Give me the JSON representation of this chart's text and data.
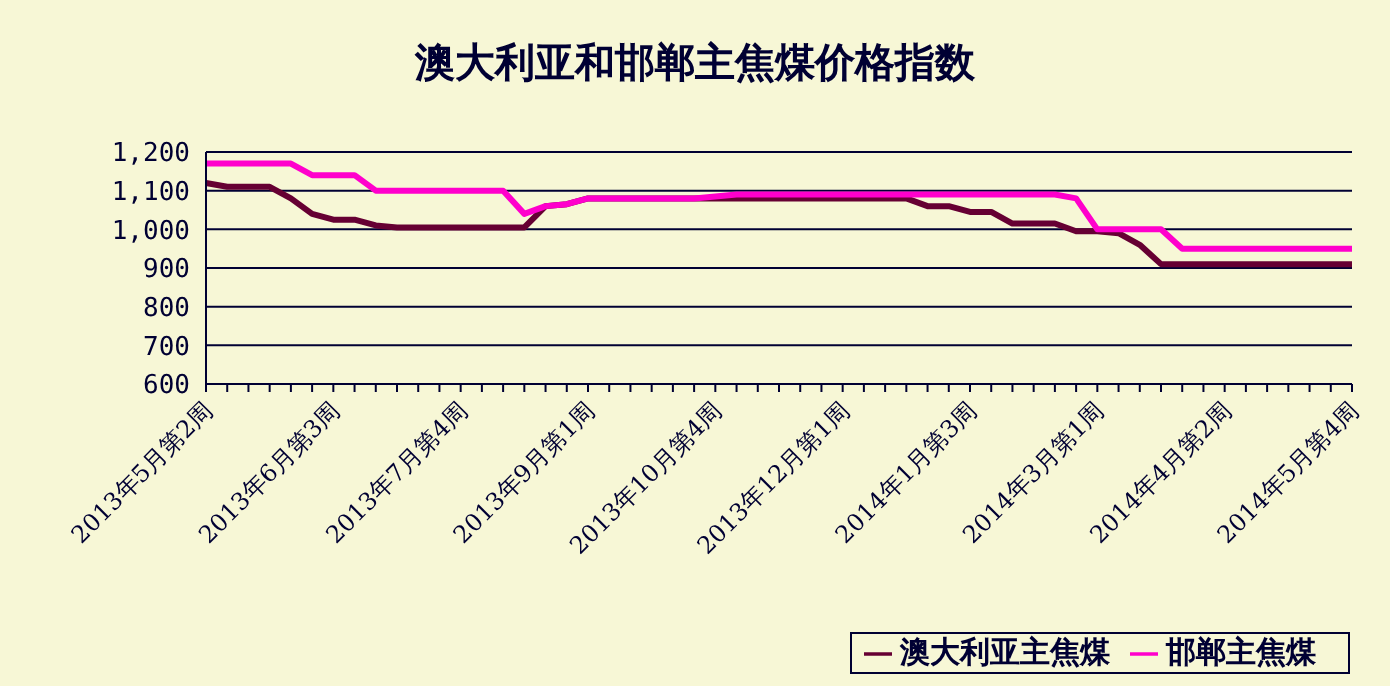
{
  "chart_data": {
    "type": "line",
    "title": "澳大利亚和邯郸主焦煤价格指数",
    "categories": [
      "2013年5月第2周",
      null,
      null,
      null,
      null,
      null,
      "2013年6月第3周",
      null,
      null,
      null,
      null,
      null,
      "2013年7月第4周",
      null,
      null,
      null,
      null,
      null,
      "2013年9月第1周",
      null,
      null,
      null,
      null,
      null,
      "2013年10月第4周",
      null,
      null,
      null,
      null,
      null,
      "2013年12月第1周",
      null,
      null,
      null,
      null,
      null,
      "2014年1月第3周",
      null,
      null,
      null,
      null,
      null,
      "2014年3月第1周",
      null,
      null,
      null,
      null,
      null,
      "2014年4月第2周",
      null,
      null,
      null,
      null,
      null,
      "2014年5月第4周"
    ],
    "series": [
      {
        "name": "澳大利亚主焦煤",
        "color": "#660033",
        "values": [
          1120,
          1110,
          1110,
          1110,
          1080,
          1040,
          1025,
          1025,
          1010,
          1005,
          1005,
          1005,
          1005,
          1005,
          1005,
          1005,
          1060,
          1065,
          1080,
          1080,
          1080,
          1080,
          1080,
          1080,
          1080,
          1080,
          1080,
          1080,
          1080,
          1080,
          1080,
          1080,
          1080,
          1080,
          1060,
          1060,
          1045,
          1045,
          1015,
          1015,
          1015,
          995,
          995,
          990,
          960,
          910,
          910,
          910,
          910,
          910,
          910,
          910,
          910,
          910,
          910
        ]
      },
      {
        "name": "邯郸主焦煤",
        "color": "#ff00cc",
        "values": [
          1170,
          1170,
          1170,
          1170,
          1170,
          1140,
          1140,
          1140,
          1100,
          1100,
          1100,
          1100,
          1100,
          1100,
          1100,
          1040,
          1060,
          1065,
          1080,
          1080,
          1080,
          1080,
          1080,
          1080,
          1085,
          1090,
          1090,
          1090,
          1090,
          1090,
          1090,
          1090,
          1090,
          1090,
          1090,
          1090,
          1090,
          1090,
          1090,
          1090,
          1090,
          1080,
          1000,
          1000,
          1000,
          1000,
          950,
          950,
          950,
          950,
          950,
          950,
          950,
          950,
          950
        ]
      }
    ],
    "ylim": [
      600,
      1200
    ],
    "yticks": [
      {
        "value": 600,
        "label": "600"
      },
      {
        "value": 700,
        "label": "700"
      },
      {
        "value": 800,
        "label": "800"
      },
      {
        "value": 900,
        "label": "900"
      },
      {
        "value": 1000,
        "label": "1,000"
      },
      {
        "value": 1100,
        "label": "1,100"
      },
      {
        "value": 1200,
        "label": "1,200"
      }
    ],
    "grid": "y",
    "legend": "bottom right",
    "marker": "none",
    "line_style": "solid"
  }
}
